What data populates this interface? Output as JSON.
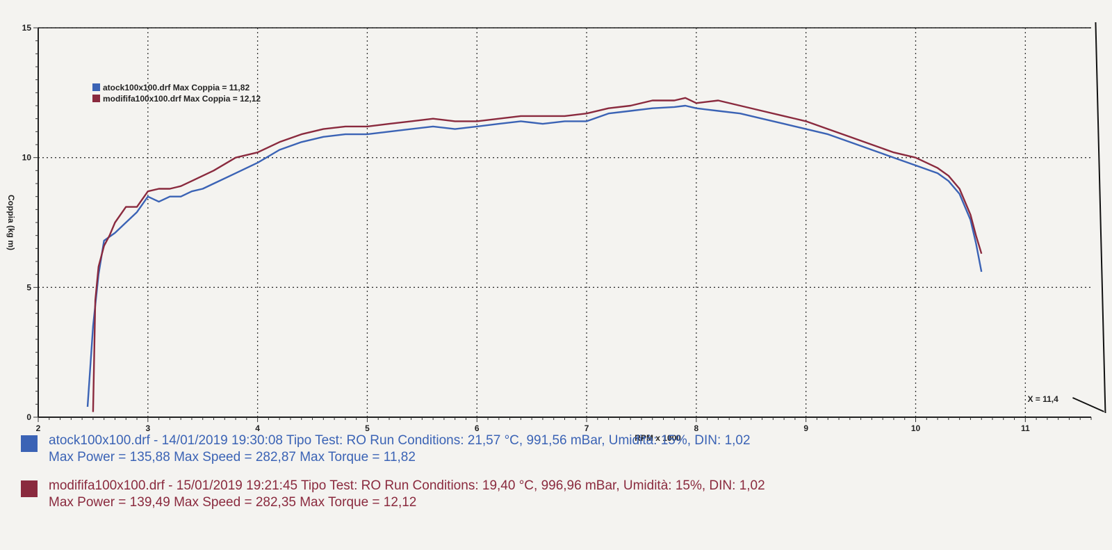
{
  "chart_data": {
    "type": "line",
    "ylabel": "Coppia (kg m)",
    "xlabel": "RPM x 1000",
    "xlim": [
      2,
      11.6
    ],
    "ylim": [
      0,
      15
    ],
    "x_ticks": [
      "2",
      "3",
      "4",
      "5",
      "6",
      "7",
      "8",
      "9",
      "10",
      "11"
    ],
    "y_ticks": [
      "0",
      "5",
      "10",
      "15"
    ],
    "grid": true,
    "legend_position": "top-left",
    "cursor": {
      "label": "X = 11,4"
    },
    "series": [
      {
        "name": "atock100x100.drf Max Coppia = 11,82",
        "color": "#3b63b5",
        "x": [
          2.45,
          2.5,
          2.55,
          2.6,
          2.7,
          2.8,
          2.9,
          3.0,
          3.1,
          3.2,
          3.3,
          3.4,
          3.5,
          3.6,
          3.8,
          4.0,
          4.2,
          4.4,
          4.6,
          4.8,
          5.0,
          5.2,
          5.4,
          5.6,
          5.8,
          6.0,
          6.2,
          6.4,
          6.6,
          6.8,
          7.0,
          7.2,
          7.4,
          7.6,
          7.8,
          7.9,
          8.0,
          8.2,
          8.4,
          8.6,
          8.8,
          9.0,
          9.2,
          9.4,
          9.6,
          9.8,
          10.0,
          10.2,
          10.3,
          10.4,
          10.5,
          10.55,
          10.6
        ],
        "y": [
          0.4,
          3.5,
          5.5,
          6.8,
          7.1,
          7.5,
          7.9,
          8.5,
          8.3,
          8.5,
          8.5,
          8.7,
          8.8,
          9.0,
          9.4,
          9.8,
          10.3,
          10.6,
          10.8,
          10.9,
          10.9,
          11.0,
          11.1,
          11.2,
          11.1,
          11.2,
          11.3,
          11.4,
          11.3,
          11.4,
          11.4,
          11.7,
          11.8,
          11.9,
          11.95,
          12.0,
          11.9,
          11.8,
          11.7,
          11.5,
          11.3,
          11.1,
          10.9,
          10.6,
          10.3,
          10.0,
          9.7,
          9.4,
          9.1,
          8.6,
          7.6,
          6.7,
          5.6
        ]
      },
      {
        "name": "modififa100x100.drf Max Coppia = 12,12",
        "color": "#8a2a3e",
        "x": [
          2.5,
          2.52,
          2.55,
          2.6,
          2.65,
          2.7,
          2.8,
          2.9,
          3.0,
          3.1,
          3.2,
          3.3,
          3.4,
          3.5,
          3.6,
          3.8,
          4.0,
          4.2,
          4.4,
          4.6,
          4.8,
          5.0,
          5.2,
          5.4,
          5.6,
          5.8,
          6.0,
          6.2,
          6.4,
          6.6,
          6.8,
          7.0,
          7.2,
          7.4,
          7.6,
          7.8,
          7.9,
          8.0,
          8.2,
          8.4,
          8.6,
          8.8,
          9.0,
          9.2,
          9.4,
          9.6,
          9.8,
          10.0,
          10.2,
          10.3,
          10.4,
          10.5,
          10.55,
          10.6
        ],
        "y": [
          0.2,
          4.5,
          5.8,
          6.6,
          7.0,
          7.5,
          8.1,
          8.1,
          8.7,
          8.8,
          8.8,
          8.9,
          9.1,
          9.3,
          9.5,
          10.0,
          10.2,
          10.6,
          10.9,
          11.1,
          11.2,
          11.2,
          11.3,
          11.4,
          11.5,
          11.4,
          11.4,
          11.5,
          11.6,
          11.6,
          11.6,
          11.7,
          11.9,
          12.0,
          12.2,
          12.2,
          12.3,
          12.1,
          12.2,
          12.0,
          11.8,
          11.6,
          11.4,
          11.1,
          10.8,
          10.5,
          10.2,
          10.0,
          9.6,
          9.3,
          8.8,
          7.8,
          7.0,
          6.3
        ]
      }
    ]
  },
  "info": [
    {
      "color": "#3b63b5",
      "line1": "atock100x100.drf - 14/01/2019 19:30:08  Tipo Test: RO  Run Conditions: 21,57 °C, 991,56 mBar,  Umidità: 15%, DIN: 1,02",
      "line2": "Max Power = 135,88  Max Speed = 282,87  Max Torque = 11,82"
    },
    {
      "color": "#8a2a3e",
      "line1": "modififa100x100.drf - 15/01/2019 19:21:45  Tipo Test: RO  Run Conditions: 19,40 °C, 996,96 mBar,  Umidità: 15%, DIN: 1,02",
      "line2": "Max Power = 139,49  Max Speed = 282,35  Max Torque = 12,12"
    }
  ]
}
